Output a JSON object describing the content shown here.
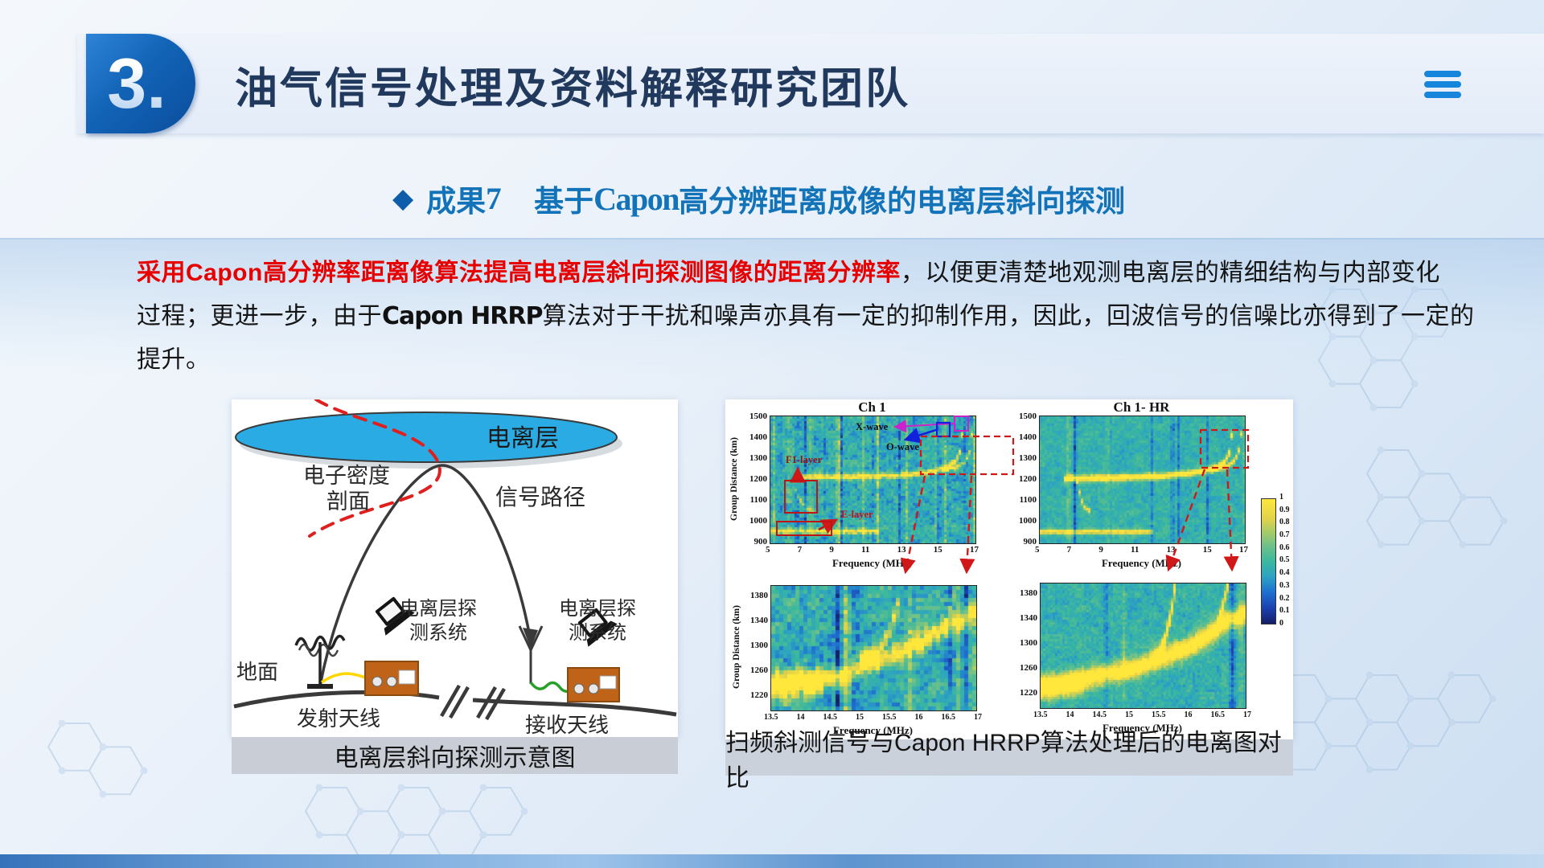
{
  "colors": {
    "accent_blue": "#1273b8",
    "badge_blue": "#1263b6",
    "title_navy": "#22395e",
    "highlight_red": "#e60000",
    "hamburger_blue": "#1586dc",
    "heat_teal": "#3bb89e"
  },
  "header": {
    "slide_number": "3.",
    "title": "油气信号处理及资料解释研究团队",
    "menu_icon": "hamburger-icon"
  },
  "subtitle": {
    "bullet": "◆",
    "result_label": "成果",
    "result_num": "7",
    "prefix": "基于",
    "capon": "Capon",
    "rest": "高分辨距离成像的电离层斜向探测"
  },
  "paragraph": {
    "line1": [
      {
        "text": "采用Capon高分辨率距离像算法提高电离层斜向探测图像的距离分辨率"
      },
      {
        "text": "，以便更清楚地观测电离层的精细结构与内部变化"
      }
    ],
    "line2": [
      {
        "text": "过程；更进一步，由于"
      },
      {
        "text": "Capon HRRP"
      },
      {
        "text": "算法对于干扰和噪声亦具有一定的抑制作用，因此，回波信号的信噪比亦得到了一定的"
      }
    ],
    "line3": [
      {
        "text": "提升。"
      }
    ]
  },
  "left_figure": {
    "caption": "电离层斜向探测示意图",
    "labels": {
      "ionosphere": "电离层",
      "density1": "电子密度",
      "density2": "剖面",
      "signal_path": "信号路径",
      "ground": "地面",
      "tx_antenna": "发射天线",
      "rx_antenna": "接收天线",
      "sys1_line1": "电离层探",
      "sys1_line2": "测系统",
      "sys2_line1": "电离层探",
      "sys2_line2": "测系统"
    }
  },
  "right_figure": {
    "caption": "扫频斜测信号与Capon HRRP算法处理后的电离图对比"
  },
  "chart_data": {
    "type": "heatmap",
    "colorbar_ticks": [
      "1",
      "0.9",
      "0.8",
      "0.7",
      "0.6",
      "0.5",
      "0.4",
      "0.3",
      "0.2",
      "0.1",
      "0"
    ],
    "colormap": [
      [
        0,
        "#151e66"
      ],
      [
        0.12,
        "#1b3fae"
      ],
      [
        0.25,
        "#1e6fd0"
      ],
      [
        0.38,
        "#2da3c2"
      ],
      [
        0.5,
        "#3bb89e"
      ],
      [
        0.62,
        "#6cc08a"
      ],
      [
        0.74,
        "#a8cc66"
      ],
      [
        0.84,
        "#e2d24a"
      ],
      [
        1,
        "#ffe73c"
      ]
    ],
    "panels": [
      {
        "id": "ch1",
        "title": "Ch 1",
        "xlabel": "Frequency (MHz)",
        "ylabel": "Group Distance (km)",
        "x_ticks": [
          "5",
          "7",
          "9",
          "11",
          "13",
          "15",
          "17"
        ],
        "y_ticks": [
          "1500",
          "1400",
          "1300",
          "1200",
          "1100",
          "1000",
          "900"
        ],
        "x_range": [
          5,
          17
        ],
        "y_range": [
          900,
          1500
        ],
        "annotations": {
          "xwave": "X-wave",
          "owave": "O-wave",
          "f1": "F1-layer",
          "e": "E-layer"
        },
        "render": {
          "base": 0.44,
          "noise": 0.11,
          "cell": 3,
          "seed": 11,
          "jit": 1,
          "stripes": [
            {
              "f": 5.15,
              "w": 0.1,
              "c": "y",
              "a": 0.25
            },
            {
              "f": 5.5,
              "w": 0.12,
              "c": "b",
              "a": 0.2
            },
            {
              "f": 6.05,
              "w": 0.1,
              "c": "y",
              "a": 0.3
            },
            {
              "f": 6.5,
              "w": 0.15,
              "c": "b",
              "a": 0.25
            },
            {
              "f": 7.0,
              "w": 0.12,
              "c": "b",
              "a": 0.3
            },
            {
              "f": 7.3,
              "w": 0.1,
              "c": "y",
              "a": 0.2
            },
            {
              "f": 8.15,
              "w": 0.1,
              "c": "b",
              "a": 0.2
            },
            {
              "f": 8.9,
              "w": 0.14,
              "c": "y",
              "a": 0.5
            },
            {
              "f": 9.1,
              "w": 0.1,
              "c": "b",
              "a": 0.3
            },
            {
              "f": 10.4,
              "w": 0.12,
              "c": "y",
              "a": 0.35
            },
            {
              "f": 10.9,
              "w": 0.1,
              "c": "b",
              "a": 0.2
            },
            {
              "f": 11.2,
              "w": 0.12,
              "c": "y",
              "a": 0.4
            },
            {
              "f": 12.5,
              "w": 0.12,
              "c": "b",
              "a": 0.3
            },
            {
              "f": 12.9,
              "w": 0.1,
              "c": "y",
              "a": 0.25
            },
            {
              "f": 13.4,
              "w": 0.1,
              "c": "b",
              "a": 0.2
            },
            {
              "f": 14.55,
              "w": 0.1,
              "c": "y",
              "a": 0.3
            },
            {
              "f": 14.8,
              "w": 0.12,
              "c": "b",
              "a": 0.35
            },
            {
              "f": 15.15,
              "w": 0.1,
              "c": "y",
              "a": 0.25
            },
            {
              "f": 16.35,
              "w": 0.1,
              "c": "b",
              "a": 0.25
            },
            {
              "f": 16.85,
              "w": 0.12,
              "c": "y",
              "a": 0.3
            }
          ],
          "traces": [
            {
              "pts": [
                [
                  5,
                  962
                ],
                [
                  11.3,
                  962
                ]
              ],
              "w": 9,
              "a": 0.55
            },
            {
              "pts": [
                [
                  6.3,
                  1218
                ],
                [
                  9,
                  1220
                ],
                [
                  12,
                  1226
                ],
                [
                  13.6,
                  1236
                ],
                [
                  14.6,
                  1248
                ],
                [
                  15.3,
                  1264
                ],
                [
                  15.8,
                  1295
                ],
                [
                  16.05,
                  1340
                ],
                [
                  16.15,
                  1410
                ],
                [
                  16.2,
                  1490
                ]
              ],
              "w": 9,
              "a": 0.6
            },
            {
              "pts": [
                [
                  14.9,
                  1253
                ],
                [
                  15.8,
                  1262
                ],
                [
                  16.35,
                  1292
                ],
                [
                  16.6,
                  1345
                ],
                [
                  16.72,
                  1420
                ],
                [
                  16.78,
                  1500
                ]
              ],
              "w": 8,
              "a": 0.45
            },
            {
              "pts": [
                [
                  6.35,
                  1165
                ],
                [
                  6.6,
                  1115
                ],
                [
                  7.0,
                  1072
                ],
                [
                  7.55,
                  1052
                ]
              ],
              "w": 8,
              "a": 0.3
            }
          ]
        }
      },
      {
        "id": "ch1hr",
        "title": "Ch 1- HR",
        "xlabel": "Frequency (MHz)",
        "x_ticks": [
          "5",
          "7",
          "9",
          "11",
          "13",
          "15",
          "17"
        ],
        "y_ticks": [
          "1500",
          "1400",
          "1300",
          "1200",
          "1100",
          "1000",
          "900"
        ],
        "x_range": [
          5,
          17
        ],
        "y_range": [
          900,
          1500
        ],
        "render": {
          "base": 0.46,
          "noise": 0.07,
          "cell": 3,
          "seed": 23,
          "jit": 0.4,
          "stripes": [
            {
              "f": 7.0,
              "w": 0.14,
              "c": "b",
              "a": 0.4
            },
            {
              "f": 6.6,
              "w": 0.2,
              "c": "y",
              "a": 0.2
            },
            {
              "f": 9.05,
              "w": 0.12,
              "c": "b",
              "a": 0.25
            },
            {
              "f": 9.0,
              "w": 0.3,
              "c": "y",
              "a": 0.15
            },
            {
              "f": 11.5,
              "w": 0.1,
              "c": "b",
              "a": 0.2
            },
            {
              "f": 12.7,
              "w": 0.12,
              "c": "b",
              "a": 0.35
            },
            {
              "f": 13.05,
              "w": 0.1,
              "c": "b",
              "a": 0.2
            },
            {
              "f": 14.75,
              "w": 0.14,
              "c": "b",
              "a": 0.25
            },
            {
              "f": 16.9,
              "w": 0.1,
              "c": "y",
              "a": 0.2
            }
          ],
          "traces": [
            {
              "pts": [
                [
                  5,
                  960
                ],
                [
                  11.5,
                  960
                ]
              ],
              "w": 8,
              "a": 0.55
            },
            {
              "pts": [
                [
                  6.3,
                  1210
                ],
                [
                  9,
                  1215
                ],
                [
                  12,
                  1222
                ],
                [
                  13.6,
                  1234
                ],
                [
                  14.6,
                  1248
                ],
                [
                  15.3,
                  1264
                ],
                [
                  15.8,
                  1295
                ],
                [
                  16.05,
                  1340
                ],
                [
                  16.15,
                  1410
                ],
                [
                  16.2,
                  1490
                ]
              ],
              "w": 11,
              "a": 0.7
            },
            {
              "pts": [
                [
                  14.9,
                  1255
                ],
                [
                  15.8,
                  1264
                ],
                [
                  16.35,
                  1295
                ],
                [
                  16.6,
                  1348
                ],
                [
                  16.72,
                  1425
                ],
                [
                  16.8,
                  1500
                ]
              ],
              "w": 9,
              "a": 0.55
            },
            {
              "pts": [
                [
                  7.1,
                  1210
                ],
                [
                  7.3,
                  1130
                ],
                [
                  7.5,
                  1075
                ],
                [
                  7.9,
                  1058
                ]
              ],
              "w": 9,
              "a": 0.5
            }
          ]
        }
      },
      {
        "id": "zoom_ch1",
        "xlabel": "Frequency (MHz)",
        "ylabel": "Group Distance (km)",
        "x_ticks": [
          "13.5",
          "14",
          "14.5",
          "15",
          "15.5",
          "16",
          "16.5",
          "17"
        ],
        "y_ticks": [
          "1380",
          "1340",
          "1300",
          "1260",
          "1220"
        ],
        "x_range": [
          13.5,
          17
        ],
        "y_range": [
          1203,
          1398
        ],
        "render": {
          "base": 0.44,
          "noise": 0.13,
          "cell": 5,
          "seed": 37,
          "jit": 1,
          "stripes": [
            {
              "f": 14.6,
              "w": 0.07,
              "c": "b",
              "a": 0.35
            },
            {
              "f": 14.75,
              "w": 0.07,
              "c": "y",
              "a": 0.4
            },
            {
              "f": 14.9,
              "w": 0.06,
              "c": "b",
              "a": 0.3
            },
            {
              "f": 15.85,
              "w": 0.06,
              "c": "y",
              "a": 0.35
            },
            {
              "f": 16.5,
              "w": 0.07,
              "c": "b",
              "a": 0.35
            },
            {
              "f": 16.65,
              "w": 0.06,
              "c": "y",
              "a": 0.25
            },
            {
              "f": 16.8,
              "w": 0.07,
              "c": "b",
              "a": 0.3
            },
            {
              "f": 16.9,
              "w": 0.05,
              "c": "y",
              "a": 0.3
            }
          ],
          "traces": [
            {
              "pts": [
                [
                  13.5,
                  1248
                ],
                [
                  14.2,
                  1252
                ],
                [
                  14.6,
                  1260
                ],
                [
                  15.0,
                  1272
                ],
                [
                  15.5,
                  1288
                ],
                [
                  16.0,
                  1310
                ],
                [
                  16.45,
                  1338
                ],
                [
                  16.8,
                  1352
                ],
                [
                  17,
                  1356
                ]
              ],
              "w": 10,
              "a": 0.6
            },
            {
              "pts": [
                [
                  15.0,
                  1282
                ],
                [
                  15.3,
                  1298
                ],
                [
                  15.5,
                  1330
                ],
                [
                  15.62,
                  1368
                ],
                [
                  15.68,
                  1400
                ]
              ],
              "w": 8,
              "a": 0.5
            },
            {
              "pts": [
                [
                  13.5,
                  1242
                ],
                [
                  14.35,
                  1250
                ]
              ],
              "w": 14,
              "a": 0.5
            },
            {
              "pts": [
                [
                  16.45,
                  1340
                ],
                [
                  16.55,
                  1372
                ],
                [
                  16.62,
                  1400
                ]
              ],
              "w": 8,
              "a": 0.35
            }
          ]
        }
      },
      {
        "id": "zoom_ch1hr",
        "xlabel": "Frequency (MHz)",
        "x_ticks": [
          "13.5",
          "14",
          "14.5",
          "15",
          "15.5",
          "16",
          "16.5",
          "17"
        ],
        "y_ticks": [
          "1380",
          "1340",
          "1300",
          "1260",
          "1220"
        ],
        "x_range": [
          13.5,
          17
        ],
        "y_range": [
          1203,
          1398
        ],
        "render": {
          "base": 0.46,
          "noise": 0.08,
          "cell": 3,
          "seed": 51,
          "jit": 0.4,
          "stripes": [
            {
              "f": 14.6,
              "w": 0.06,
              "c": "b",
              "a": 0.2
            },
            {
              "f": 14.9,
              "w": 0.05,
              "c": "y",
              "a": 0.15
            },
            {
              "f": 16.75,
              "w": 0.07,
              "c": "b",
              "a": 0.35
            },
            {
              "f": 16.9,
              "w": 0.05,
              "c": "y",
              "a": 0.2
            }
          ],
          "traces": [
            {
              "pts": [
                [
                  13.5,
                  1240
                ],
                [
                  14.3,
                  1252
                ],
                [
                  15.0,
                  1266
                ],
                [
                  15.6,
                  1284
                ],
                [
                  16.0,
                  1300
                ],
                [
                  16.4,
                  1322
                ],
                [
                  16.65,
                  1342
                ],
                [
                  17,
                  1352
                ]
              ],
              "w": 11,
              "a": 0.7
            },
            {
              "pts": [
                [
                  15.4,
                  1278
                ],
                [
                  15.58,
                  1305
                ],
                [
                  15.7,
                  1348
                ],
                [
                  15.78,
                  1400
                ]
              ],
              "w": 9,
              "a": 0.6
            },
            {
              "pts": [
                [
                  16.5,
                  1338
                ],
                [
                  16.6,
                  1368
                ],
                [
                  16.68,
                  1400
                ]
              ],
              "w": 8,
              "a": 0.5
            },
            {
              "pts": [
                [
                  13.5,
                  1228
                ],
                [
                  14.2,
                  1240
                ]
              ],
              "w": 10,
              "a": 0.3
            }
          ]
        }
      }
    ]
  }
}
